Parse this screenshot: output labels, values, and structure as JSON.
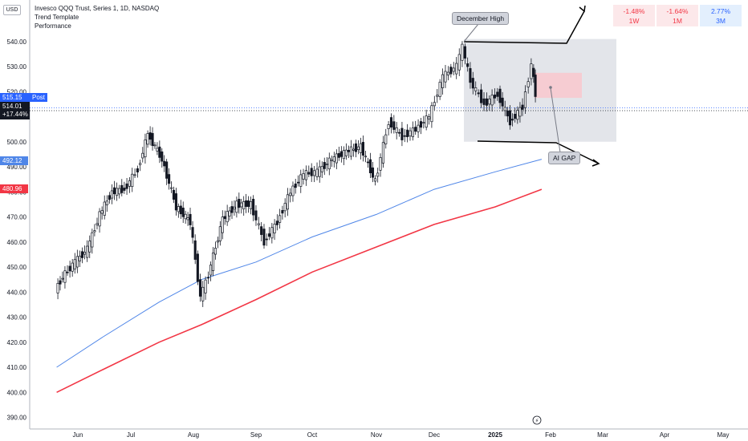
{
  "header": {
    "title": "Invesco QQQ Trust, Series 1, 1D, NASDAQ",
    "indicator_1": "Trend Template",
    "indicator_2": "Performance",
    "currency": "USD"
  },
  "performance": [
    {
      "value": "-1.48%",
      "period": "1W",
      "color": "#f23645",
      "bg": "#fce8ea"
    },
    {
      "value": "-1.64%",
      "period": "1M",
      "color": "#f23645",
      "bg": "#fce8ea"
    },
    {
      "value": "2.77%",
      "period": "3M",
      "color": "#2962ff",
      "bg": "#e3effd"
    }
  ],
  "price_tags": {
    "post_price": "515.15",
    "post_label": "Post",
    "last_price": "514.01",
    "last_change": "+17.44%",
    "ma_blue": "492.12",
    "ma_red": "480.96"
  },
  "annotations": {
    "december_high": "December High",
    "ai_gap": "AI GAP"
  },
  "colors": {
    "candle": "#131722",
    "ma_fast": "#4f86e8",
    "ma_slow": "#f23645",
    "post_tag": "#2962ff",
    "box_fill": "#d1d4dc",
    "gap_fill": "#f7c9cf",
    "grid_text": "#131722"
  },
  "chart_data": {
    "type": "line",
    "title": "Invesco QQQ Trust, Series 1, 1D, NASDAQ",
    "ylim": [
      385,
      550
    ],
    "yticks": [
      390,
      400,
      410,
      420,
      430,
      440,
      450,
      460,
      470,
      480,
      490,
      500,
      510,
      520,
      530,
      540
    ],
    "x_tick_labels": [
      "Jun",
      "Jul",
      "Aug",
      "Sep",
      "Oct",
      "Nov",
      "Dec",
      "2025",
      "Feb",
      "Mar",
      "Apr",
      "May"
    ],
    "series": [
      {
        "x": [
          "2024-05-20",
          "2024-05-24",
          "2024-05-31",
          "2024-06-07",
          "2024-06-14",
          "2024-06-21",
          "2024-06-28",
          "2024-07-05",
          "2024-07-10",
          "2024-07-17",
          "2024-07-24",
          "2024-07-31",
          "2024-08-05",
          "2024-08-09",
          "2024-08-16",
          "2024-08-23",
          "2024-08-30",
          "2024-09-06",
          "2024-09-13",
          "2024-09-20",
          "2024-09-27",
          "2024-10-04",
          "2024-10-11",
          "2024-10-18",
          "2024-10-25",
          "2024-11-01",
          "2024-11-08",
          "2024-11-15",
          "2024-11-22",
          "2024-11-29",
          "2024-12-06",
          "2024-12-13",
          "2024-12-16",
          "2024-12-20",
          "2024-12-27",
          "2025-01-03",
          "2025-01-10",
          "2025-01-17",
          "2025-01-22",
          "2025-01-24"
        ],
        "values": [
          441,
          446,
          452,
          457,
          471,
          480,
          481,
          489,
          503,
          493,
          474,
          468,
          438,
          447,
          469,
          475,
          475,
          460,
          468,
          480,
          487,
          488,
          493,
          496,
          498,
          484,
          508,
          502,
          505,
          510,
          526,
          530,
          538,
          524,
          515,
          519,
          508,
          514,
          531,
          519
        ]
      },
      {
        "name": "",
        "x": [
          "2024-05-20",
          "2024-06-15",
          "2024-07-15",
          "2024-08-05",
          "2024-09-01",
          "2024-10-01",
          "2024-11-01",
          "2024-12-01",
          "2025-01-01",
          "2025-01-27"
        ],
        "values": [
          410,
          422,
          436,
          445,
          452,
          462,
          471,
          481,
          488,
          493
        ]
      },
      {
        "name": "",
        "x": [
          "2024-05-20",
          "2024-06-15",
          "2024-07-15",
          "2024-08-05",
          "2024-09-01",
          "2024-10-01",
          "2024-11-01",
          "2024-12-01",
          "2025-01-01",
          "2025-01-27"
        ],
        "values": [
          400,
          409,
          420,
          427,
          437,
          448,
          458,
          467,
          474,
          481
        ]
      }
    ]
  }
}
